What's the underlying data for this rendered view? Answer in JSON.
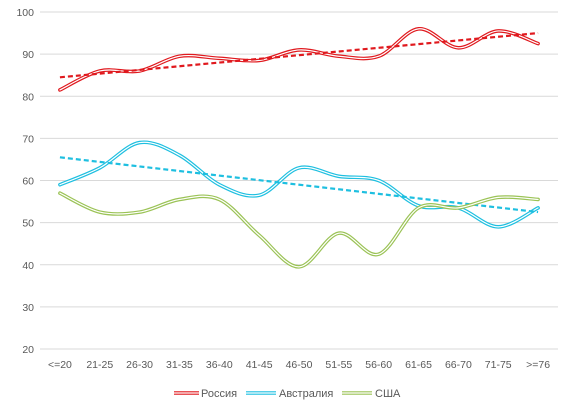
{
  "chart_data": {
    "type": "line",
    "title": "",
    "xlabel": "",
    "ylabel": "",
    "categories": [
      "<=20",
      "21-25",
      "26-30",
      "31-35",
      "36-40",
      "41-45",
      "46-50",
      "51-55",
      "56-60",
      "61-65",
      "66-70",
      "71-75",
      ">=76"
    ],
    "ylim": [
      20,
      100
    ],
    "yticks": [
      20,
      30,
      40,
      50,
      60,
      70,
      80,
      90,
      100
    ],
    "grid": true,
    "legend_position": "bottom",
    "series": [
      {
        "name": "Россия",
        "color": "#e0191e",
        "values": [
          81.5,
          86,
          86,
          89.5,
          89,
          88.5,
          91,
          89.5,
          89.5,
          96,
          91.5,
          95.5,
          92.5
        ],
        "trendline": [
          84.5,
          95
        ]
      },
      {
        "name": "Австралия",
        "color": "#1ebfe0",
        "values": [
          59,
          63,
          69,
          66,
          59,
          56.5,
          63,
          61,
          60,
          54,
          53.5,
          49,
          53.5
        ],
        "trendline": [
          65.5,
          52.5
        ]
      },
      {
        "name": "США",
        "color": "#9bc356",
        "values": [
          57,
          52.5,
          52.5,
          55.5,
          55.5,
          47,
          39.5,
          47.5,
          42.5,
          53.5,
          53.5,
          56,
          55.5
        ],
        "trendline": null
      }
    ]
  }
}
